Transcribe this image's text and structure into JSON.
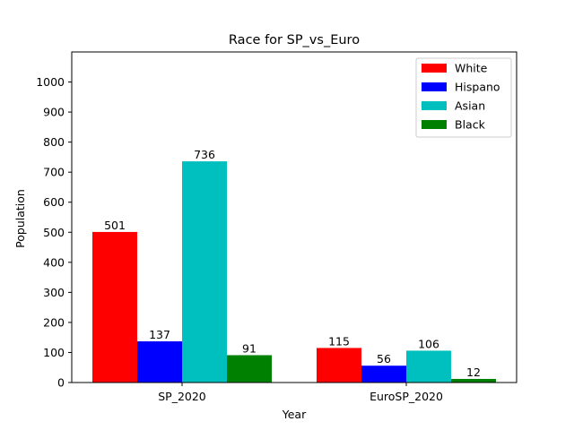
{
  "chart_data": {
    "type": "bar",
    "title": "Race for SP_vs_Euro",
    "xlabel": "Year",
    "ylabel": "Population",
    "categories": [
      "SP_2020",
      "EuroSP_2020"
    ],
    "series": [
      {
        "name": "White",
        "color": "#ff0000",
        "values": [
          501,
          115
        ]
      },
      {
        "name": "Hispano",
        "color": "#0000ff",
        "values": [
          137,
          56
        ]
      },
      {
        "name": "Asian",
        "color": "#00bfbf",
        "values": [
          736,
          106
        ]
      },
      {
        "name": "Black",
        "color": "#008000",
        "values": [
          91,
          12
        ]
      }
    ],
    "ylim": [
      0,
      1100
    ],
    "yticks": [
      "0",
      "100",
      "200",
      "300",
      "400",
      "500",
      "600",
      "700",
      "800",
      "900",
      "1000"
    ],
    "grid": false,
    "legend_position": "top-right",
    "data_labels": true
  }
}
